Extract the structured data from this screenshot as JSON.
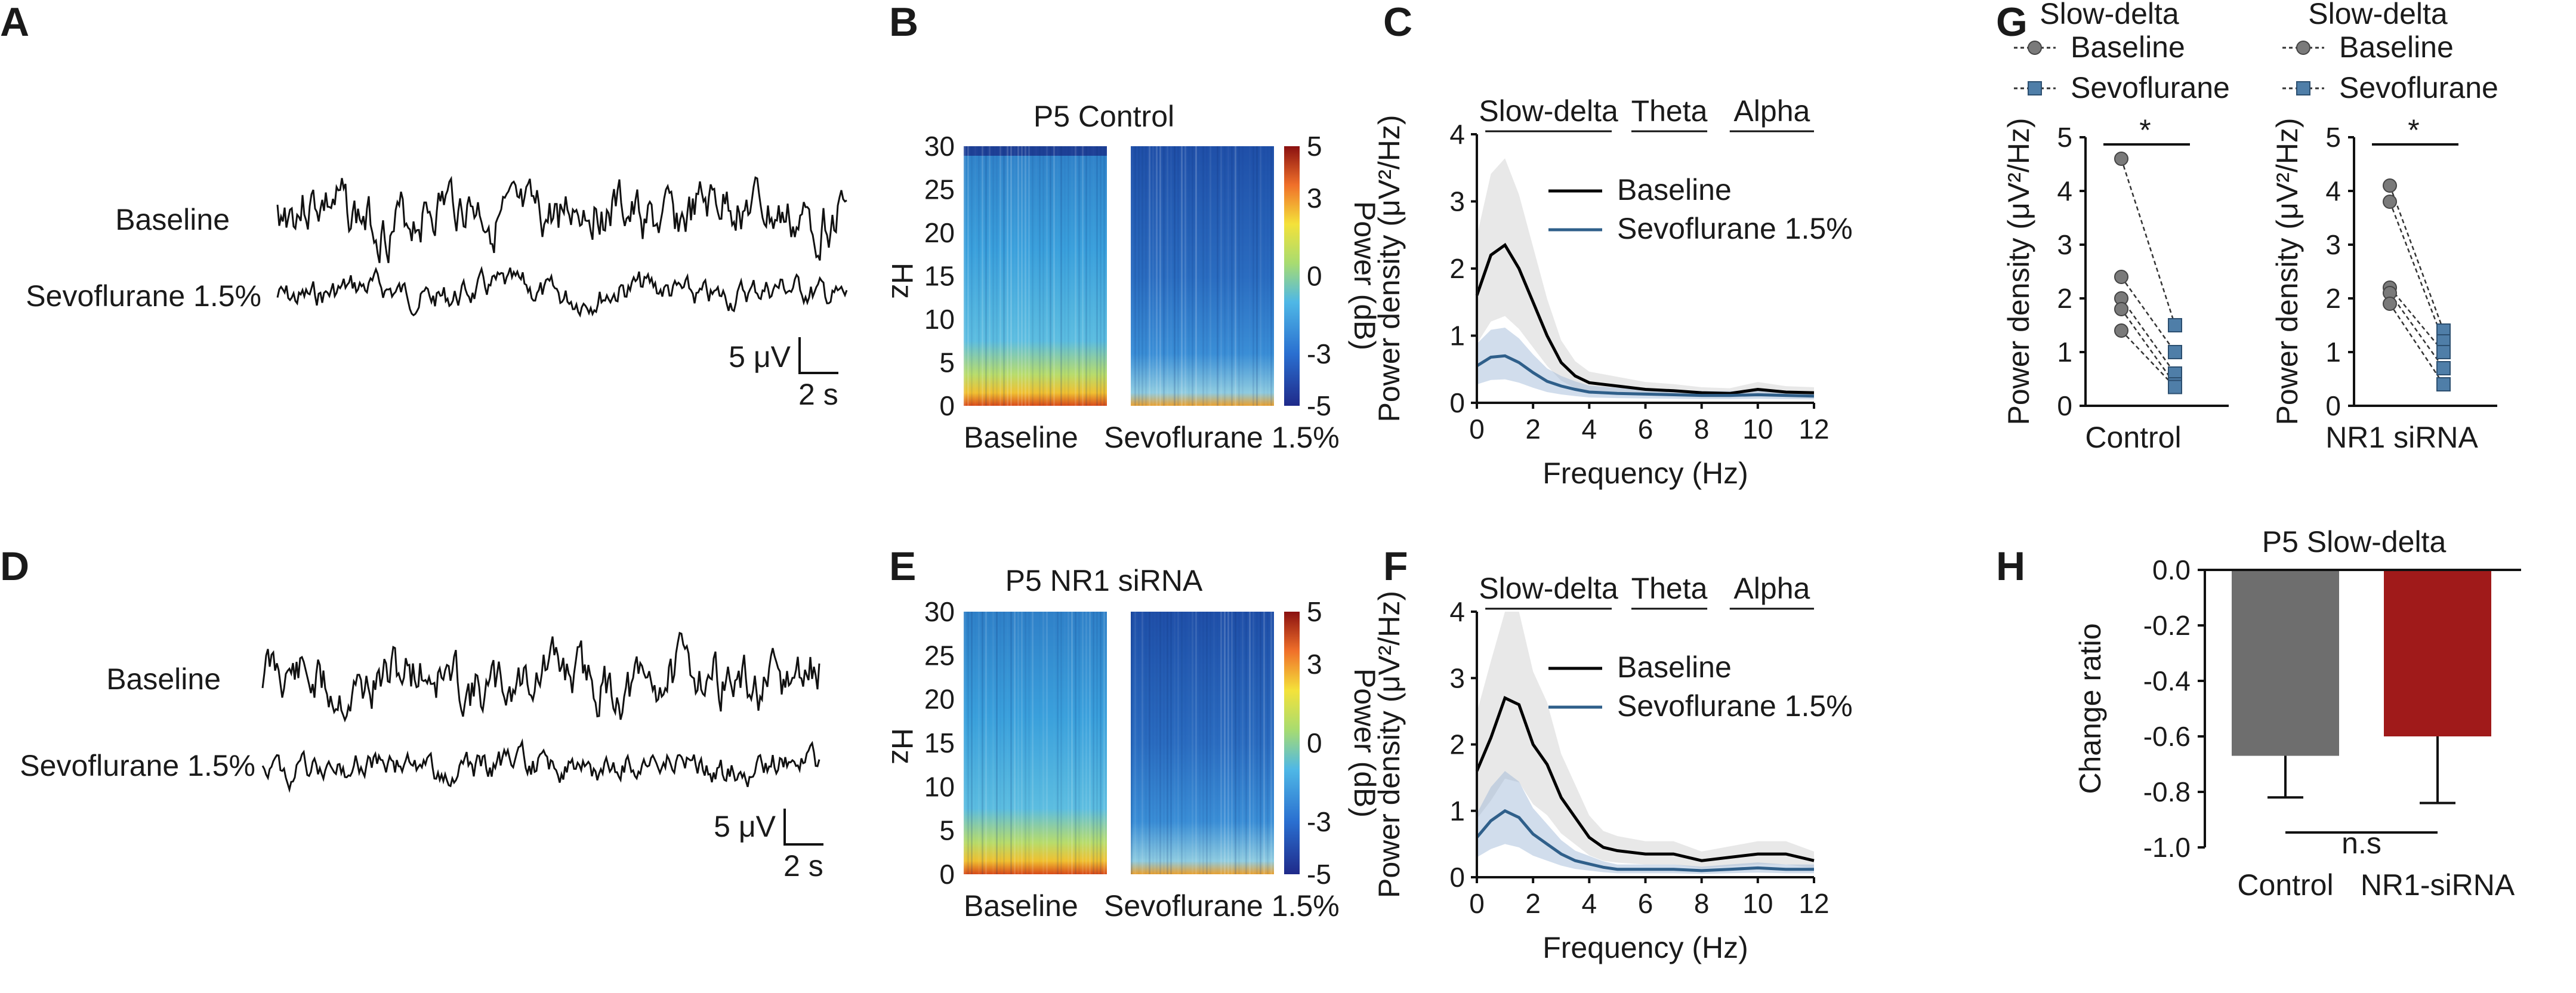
{
  "figure": {
    "panels": {
      "A": "A",
      "B": "B",
      "C": "C",
      "D": "D",
      "E": "E",
      "F": "F",
      "G": "G",
      "H": "H"
    }
  },
  "eeg_traces": [
    {
      "panel": "A",
      "labels": {
        "baseline": "Baseline",
        "sevo": "Sevoflurane 1.5%"
      },
      "scale": {
        "amplitude": "5 μV",
        "time": "2 s"
      }
    },
    {
      "panel": "D",
      "labels": {
        "baseline": "Baseline",
        "sevo": "Sevoflurane 1.5%"
      },
      "scale": {
        "amplitude": "5 μV",
        "time": "2 s"
      }
    }
  ],
  "spectrograms": [
    {
      "panel": "B",
      "title": "P5  Control",
      "ylabel": "Hz",
      "yticks": [
        "0",
        "5",
        "10",
        "15",
        "20",
        "25",
        "30"
      ],
      "xlabels": [
        "Baseline",
        "Sevoflurane 1.5%"
      ],
      "colorbar": {
        "label": "Power (dB)",
        "ticks": [
          "5",
          "3",
          "0",
          "-3",
          "-5"
        ]
      }
    },
    {
      "panel": "E",
      "title": "P5  NR1 siRNA",
      "ylabel": "Hz",
      "yticks": [
        "0",
        "5",
        "10",
        "15",
        "20",
        "25",
        "30"
      ],
      "xlabels": [
        "Baseline",
        "Sevoflurane 1.5%"
      ],
      "colorbar": {
        "label": "Power (dB)",
        "ticks": [
          "5",
          "3",
          "0",
          "-3",
          "-5"
        ]
      }
    }
  ],
  "chart_data": [
    {
      "panel": "C",
      "type": "line",
      "xlabel": "Frequency (Hz)",
      "ylabel": "Power density (μV²/Hz)",
      "xlim": [
        0,
        12
      ],
      "ylim": [
        0,
        4
      ],
      "xticks": [
        "0",
        "2",
        "4",
        "6",
        "8",
        "10",
        "12"
      ],
      "yticks": [
        "0",
        "1",
        "2",
        "3",
        "4"
      ],
      "bands": [
        "Slow-delta",
        "Theta",
        "Alpha"
      ],
      "x": [
        0,
        0.5,
        1,
        1.5,
        2,
        2.5,
        3,
        3.5,
        4,
        5,
        6,
        7,
        8,
        9,
        10,
        11,
        12
      ],
      "series": [
        {
          "name": "Baseline",
          "color": "#000000",
          "values": [
            1.6,
            2.2,
            2.35,
            2.0,
            1.5,
            1.0,
            0.6,
            0.4,
            0.3,
            0.25,
            0.2,
            0.18,
            0.15,
            0.14,
            0.2,
            0.16,
            0.15
          ]
        },
        {
          "name": "Sevoflurane 1.5%",
          "color": "#2f5f8a",
          "values": [
            0.55,
            0.68,
            0.7,
            0.6,
            0.45,
            0.32,
            0.25,
            0.2,
            0.16,
            0.14,
            0.13,
            0.12,
            0.11,
            0.11,
            0.12,
            0.11,
            0.1
          ]
        }
      ]
    },
    {
      "panel": "F",
      "type": "line",
      "xlabel": "Frequency (Hz)",
      "ylabel": "Power density (μV²/Hz)",
      "xlim": [
        0,
        12
      ],
      "ylim": [
        0,
        4
      ],
      "xticks": [
        "0",
        "2",
        "4",
        "6",
        "8",
        "10",
        "12"
      ],
      "yticks": [
        "0",
        "1",
        "2",
        "3",
        "4"
      ],
      "bands": [
        "Slow-delta",
        "Theta",
        "Alpha"
      ],
      "x": [
        0,
        0.5,
        1,
        1.5,
        2,
        2.5,
        3,
        3.5,
        4,
        4.5,
        5,
        6,
        7,
        8,
        9,
        10,
        11,
        12
      ],
      "series": [
        {
          "name": "Baseline",
          "color": "#000000",
          "values": [
            1.6,
            2.1,
            2.7,
            2.6,
            2.0,
            1.7,
            1.2,
            0.9,
            0.6,
            0.45,
            0.4,
            0.35,
            0.35,
            0.25,
            0.3,
            0.35,
            0.35,
            0.25
          ]
        },
        {
          "name": "Sevoflurane 1.5%",
          "color": "#2f5f8a",
          "values": [
            0.6,
            0.85,
            1.0,
            0.9,
            0.65,
            0.5,
            0.35,
            0.25,
            0.2,
            0.15,
            0.12,
            0.12,
            0.12,
            0.1,
            0.12,
            0.14,
            0.12,
            0.12
          ]
        }
      ]
    },
    {
      "panel": "G",
      "type": "scatter",
      "title": "Slow-delta",
      "ylabel": "Power density (μV²/Hz)",
      "ylim": [
        0,
        5
      ],
      "yticks": [
        "0",
        "1",
        "2",
        "3",
        "4",
        "5"
      ],
      "legend": [
        "Baseline",
        "Sevoflurane"
      ],
      "groups": [
        {
          "name": "Control",
          "significance": "*",
          "baseline": [
            4.6,
            2.4,
            2.0,
            1.8,
            1.4
          ],
          "sevoflurane": [
            1.5,
            1.0,
            0.6,
            0.4,
            0.35
          ]
        },
        {
          "name": "NR1 siRNA",
          "significance": "*",
          "baseline": [
            4.1,
            3.8,
            2.2,
            2.1,
            1.9
          ],
          "sevoflurane": [
            1.4,
            1.2,
            1.0,
            0.7,
            0.4
          ]
        }
      ]
    },
    {
      "panel": "H",
      "type": "bar",
      "title": "P5  Slow-delta",
      "ylabel": "Change ratio",
      "ylim": [
        -1.0,
        0.0
      ],
      "yticks": [
        "0.0",
        "-0.2",
        "-0.4",
        "-0.6",
        "-0.8",
        "-1.0"
      ],
      "categories": [
        "Control",
        "NR1-siRNA"
      ],
      "values": [
        -0.67,
        -0.6
      ],
      "errors": [
        0.15,
        0.24
      ],
      "colors": [
        "#6e6e6e",
        "#a01a1a"
      ],
      "annotation": "n.s"
    }
  ]
}
